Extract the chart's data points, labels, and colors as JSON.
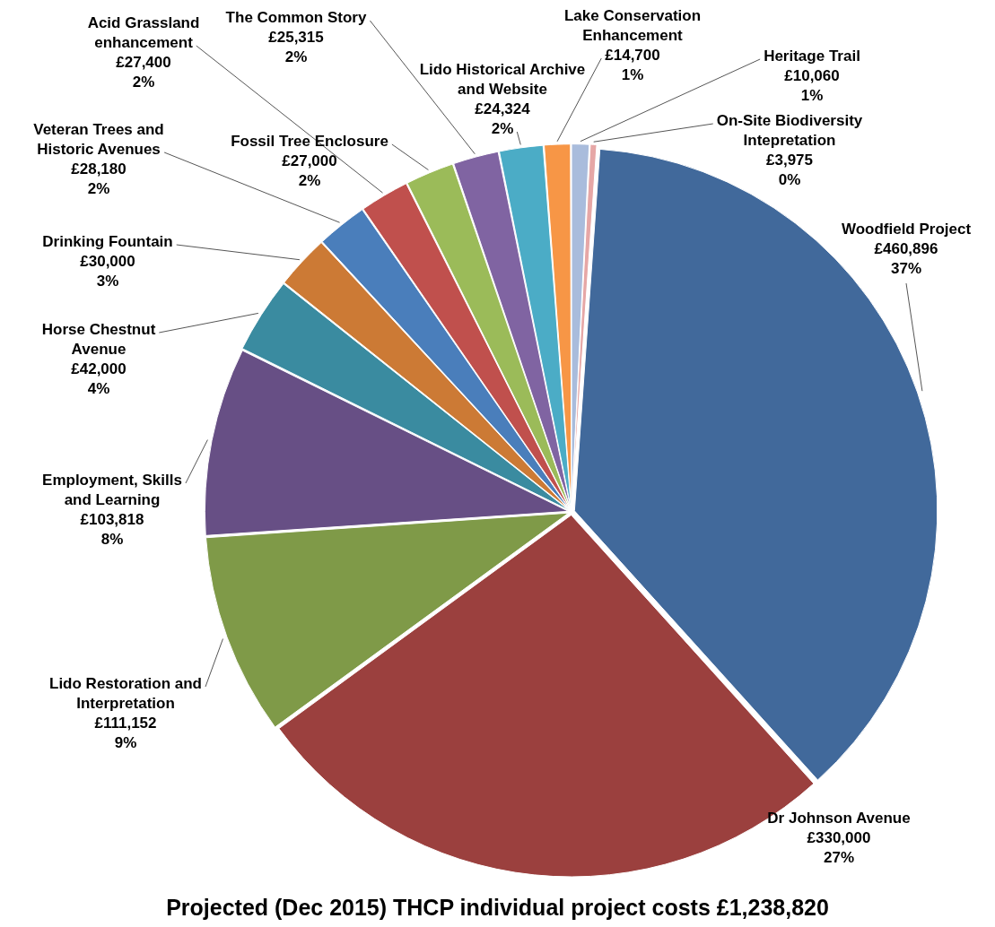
{
  "chart_data": {
    "type": "pie",
    "title": "Projected  (Dec 2015) THCP individual project costs £1,238,820",
    "categories": [
      "Woodfield Project",
      "Dr Johnson Avenue",
      "Lido Restoration and Interpretation",
      "Employment, Skills and Learning",
      "Horse Chestnut Avenue",
      "Drinking Fountain",
      "Veteran Trees and Historic Avenues",
      "Acid Grassland enhancement",
      "Fossil Tree Enclosure",
      "The Common Story",
      "Lido Historical Archive and Website",
      "Lake Conservation Enhancement",
      "Heritage Trail",
      "On-Site Biodiversity Intepretation"
    ],
    "values": [
      460896,
      330000,
      111152,
      103818,
      42000,
      30000,
      28180,
      27400,
      27000,
      25315,
      24324,
      14700,
      10060,
      3975
    ],
    "colors": [
      "#41699b",
      "#9b403e",
      "#7f9a48",
      "#674f85",
      "#3a8ba0",
      "#cc7a35",
      "#4a7ebb",
      "#c0504d",
      "#9bbb59",
      "#8064a2",
      "#4bacc6",
      "#f79646",
      "#a9bcdc",
      "#e6a7a6"
    ],
    "value_labels": [
      "£460,896\n37%",
      "£330,000\n27%",
      "£111,152\n9%",
      "£103,818\n8%",
      "£42,000\n4%",
      "£30,000\n3%",
      "£28,180\n2%",
      "£27,400\n2%",
      "£27,000\n2%",
      "£25,315\n2%",
      "£24,324\n2%",
      "£14,700\n1%",
      "£10,060\n1%",
      "£3,975\n0%"
    ],
    "legend": false
  }
}
